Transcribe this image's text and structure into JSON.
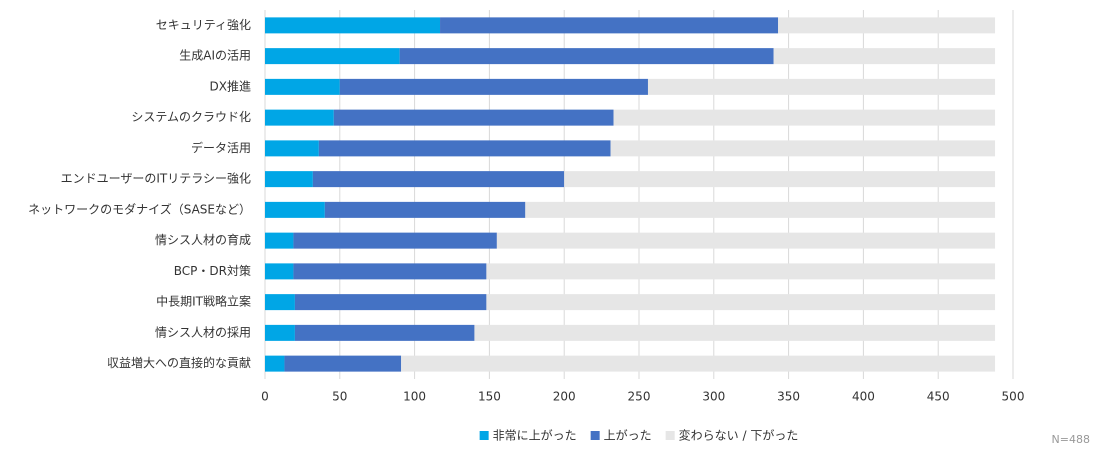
{
  "chart_data": {
    "type": "bar",
    "orientation": "horizontal",
    "stacked": true,
    "categories": [
      "セキュリティ強化",
      "生成AIの活用",
      "DX推進",
      "システムのクラウド化",
      "データ活用",
      "エンドユーザーのITリテラシー強化",
      "ネットワークのモダナイズ（SASEなど）",
      "情シス人材の育成",
      "BCP・DR対策",
      "中長期IT戦略立案",
      "情シス人材の採用",
      "収益増大への直接的な貢献"
    ],
    "series": [
      {
        "name": "非常に上がった",
        "color": "#00a6e6",
        "values": [
          117,
          90,
          50,
          46,
          36,
          32,
          40,
          19,
          19,
          20,
          20,
          13
        ]
      },
      {
        "name": "上がった",
        "color": "#4472c4",
        "values": [
          226,
          250,
          206,
          187,
          195,
          168,
          134,
          136,
          129,
          128,
          120,
          78
        ]
      },
      {
        "name": "変わらない / 下がった",
        "color": "#e6e6e6",
        "values": [
          145,
          148,
          232,
          255,
          257,
          288,
          314,
          333,
          340,
          340,
          348,
          397
        ]
      }
    ],
    "xlim": [
      0,
      500
    ],
    "xticks": [
      0,
      50,
      100,
      150,
      200,
      250,
      300,
      350,
      400,
      450,
      500
    ],
    "grid": true,
    "legend": "bottom",
    "annotation": "N=488"
  }
}
